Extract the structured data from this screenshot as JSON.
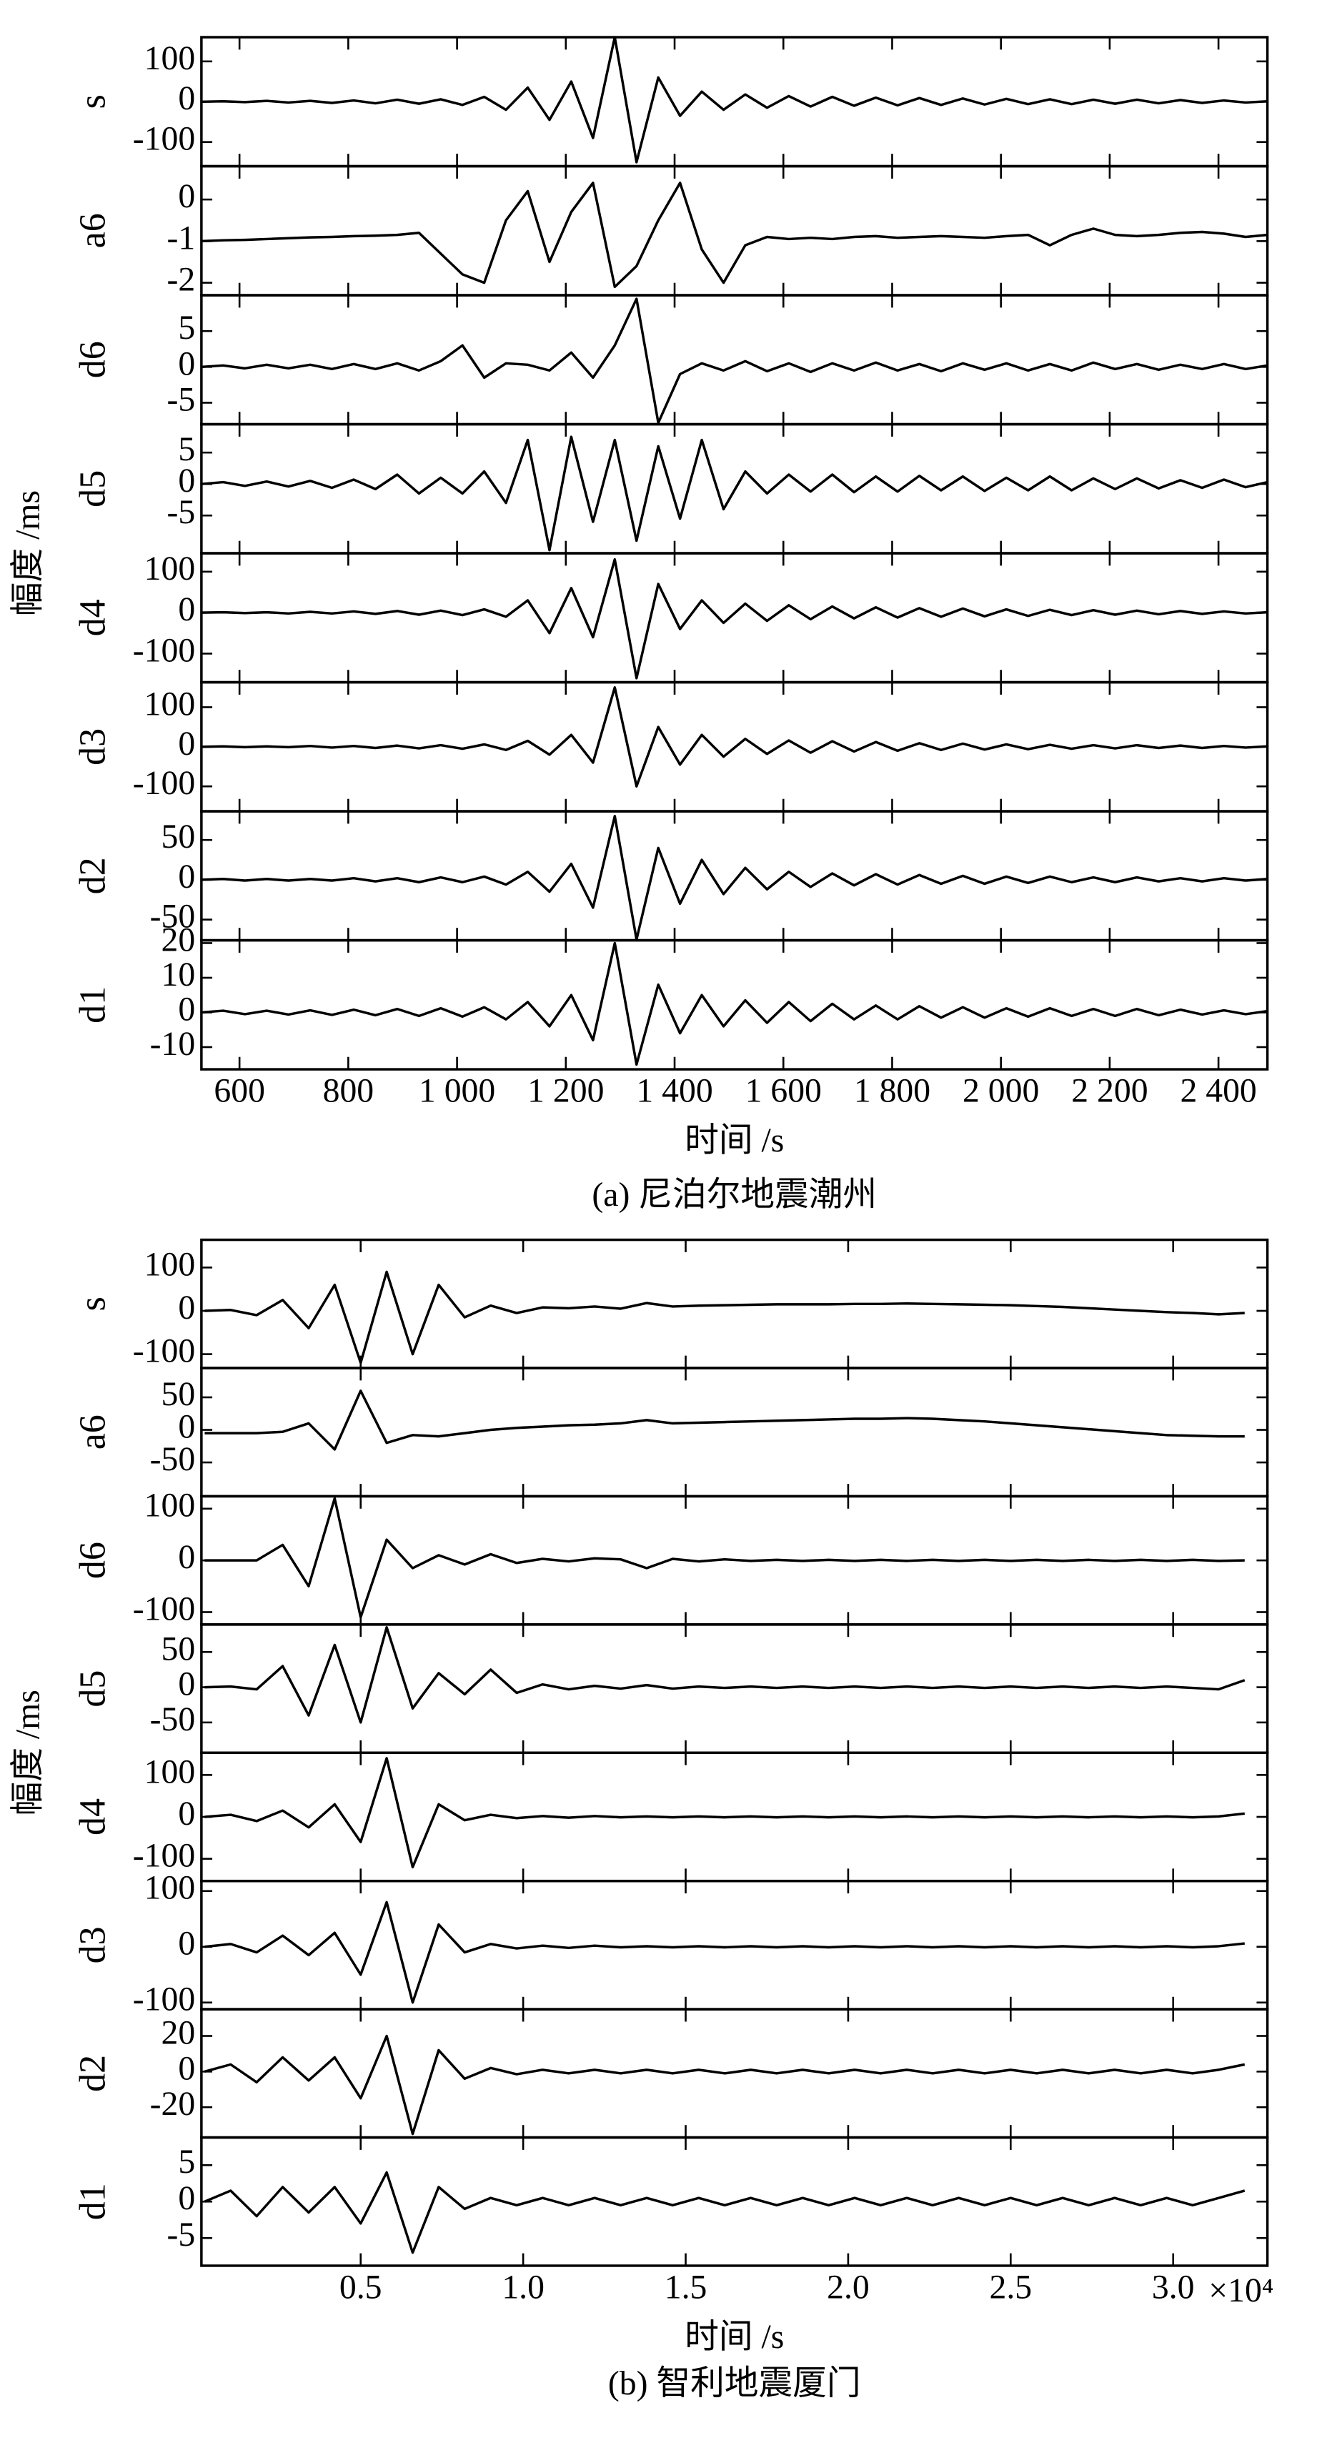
{
  "chart_data": [
    {
      "type": "line",
      "caption": "(a) 尼泊尔地震潮州",
      "xlabel": "时间 /s",
      "ylabel": "幅度 /ms",
      "color": "#000000",
      "xlim": [
        530,
        2490
      ],
      "xticks": [
        600,
        800,
        {
          "value": 1000,
          "label": "1 000"
        },
        {
          "value": 1200,
          "label": "1 200"
        },
        {
          "value": 1400,
          "label": "1 400"
        },
        {
          "value": 1600,
          "label": "1 600"
        },
        {
          "value": 1800,
          "label": "1 800"
        },
        {
          "value": 2000,
          "label": "2 000"
        },
        {
          "value": 2200,
          "label": "2 200"
        },
        {
          "value": 2400,
          "label": "2 400"
        }
      ],
      "x": [
        530,
        570,
        610,
        650,
        690,
        730,
        770,
        810,
        850,
        890,
        930,
        970,
        1010,
        1050,
        1090,
        1130,
        1170,
        1210,
        1250,
        1290,
        1330,
        1370,
        1410,
        1450,
        1490,
        1530,
        1570,
        1610,
        1650,
        1690,
        1730,
        1770,
        1810,
        1850,
        1890,
        1930,
        1970,
        2010,
        2050,
        2090,
        2130,
        2170,
        2210,
        2250,
        2290,
        2330,
        2370,
        2410,
        2450,
        2490
      ],
      "panels": [
        {
          "name": "s",
          "ylim": [
            -160,
            160
          ],
          "yticks": [
            100,
            0,
            -100
          ],
          "values": [
            0,
            1,
            -1,
            2,
            -2,
            2,
            -3,
            3,
            -4,
            5,
            -5,
            6,
            -8,
            12,
            -20,
            35,
            -45,
            50,
            -90,
            160,
            -150,
            60,
            -35,
            25,
            -20,
            18,
            -15,
            14,
            -12,
            12,
            -10,
            10,
            -9,
            9,
            -8,
            8,
            -7,
            7,
            -6,
            6,
            -6,
            5,
            -5,
            5,
            -4,
            4,
            -3,
            3,
            -2,
            1
          ]
        },
        {
          "name": "a6",
          "ylim": [
            -2.3,
            0.8
          ],
          "yticks": [
            0,
            -1,
            -2
          ],
          "values": [
            -1.0,
            -0.98,
            -0.97,
            -0.95,
            -0.93,
            -0.91,
            -0.9,
            -0.88,
            -0.87,
            -0.85,
            -0.8,
            -1.3,
            -1.8,
            -2.0,
            -0.5,
            0.2,
            -1.5,
            -0.3,
            0.4,
            -2.1,
            -1.6,
            -0.5,
            0.4,
            -1.2,
            -2.0,
            -1.1,
            -0.9,
            -0.95,
            -0.92,
            -0.95,
            -0.9,
            -0.88,
            -0.92,
            -0.9,
            -0.88,
            -0.9,
            -0.92,
            -0.88,
            -0.85,
            -1.1,
            -0.85,
            -0.7,
            -0.85,
            -0.88,
            -0.85,
            -0.8,
            -0.78,
            -0.82,
            -0.9,
            -0.85
          ]
        },
        {
          "name": "d6",
          "ylim": [
            -8,
            10
          ],
          "yticks": [
            5,
            0,
            -5
          ],
          "values": [
            0,
            0.2,
            -0.2,
            0.3,
            -0.2,
            0.3,
            -0.3,
            0.4,
            -0.3,
            0.5,
            -0.5,
            0.8,
            3,
            -1.5,
            0.5,
            0.3,
            -0.5,
            2,
            -1.5,
            3,
            9.5,
            -7.8,
            -1,
            0.5,
            -0.5,
            0.8,
            -0.6,
            0.5,
            -0.7,
            0.5,
            -0.5,
            0.6,
            -0.5,
            0.4,
            -0.6,
            0.5,
            -0.4,
            0.5,
            -0.5,
            0.4,
            -0.5,
            0.6,
            -0.3,
            0.4,
            -0.4,
            0.3,
            -0.3,
            0.4,
            -0.3,
            0.2
          ]
        },
        {
          "name": "d5",
          "ylim": [
            -11,
            9.5
          ],
          "yticks": [
            5,
            0,
            -5
          ],
          "values": [
            0,
            0.3,
            -0.3,
            0.4,
            -0.4,
            0.5,
            -0.6,
            0.7,
            -0.8,
            1.5,
            -1.5,
            1,
            -1.5,
            2,
            -3,
            7,
            -10.5,
            7.5,
            -6,
            7,
            -9,
            6,
            -5.5,
            7,
            -4,
            2,
            -1.5,
            1.5,
            -1.2,
            1.5,
            -1.3,
            1.2,
            -1.2,
            1.3,
            -1.0,
            1.2,
            -1.1,
            1.0,
            -1.0,
            1.2,
            -1.0,
            0.9,
            -0.8,
            0.9,
            -0.7,
            0.6,
            -0.6,
            0.7,
            -0.5,
            0.3
          ]
        },
        {
          "name": "d4",
          "ylim": [
            -170,
            145
          ],
          "yticks": [
            100,
            0,
            -100
          ],
          "values": [
            0,
            1,
            -1,
            1,
            -2,
            2,
            -2,
            3,
            -3,
            4,
            -5,
            5,
            -6,
            8,
            -10,
            30,
            -50,
            60,
            -60,
            130,
            -160,
            70,
            -40,
            30,
            -25,
            22,
            -20,
            18,
            -16,
            15,
            -14,
            13,
            -12,
            11,
            -10,
            10,
            -9,
            8,
            -8,
            7,
            -6,
            6,
            -5,
            5,
            -4,
            4,
            -3,
            3,
            -2,
            1
          ]
        },
        {
          "name": "d3",
          "ylim": [
            -163,
            163
          ],
          "yticks": [
            100,
            0,
            -100
          ],
          "values": [
            0,
            1,
            -1,
            1,
            -1,
            2,
            -2,
            2,
            -3,
            3,
            -4,
            4,
            -5,
            6,
            -8,
            15,
            -20,
            30,
            -40,
            150,
            -100,
            50,
            -45,
            30,
            -25,
            20,
            -18,
            16,
            -15,
            14,
            -12,
            12,
            -10,
            9,
            -8,
            8,
            -7,
            6,
            -6,
            5,
            -5,
            4,
            -4,
            4,
            -3,
            3,
            -3,
            2,
            -2,
            1
          ]
        },
        {
          "name": "d2",
          "ylim": [
            -76,
            86
          ],
          "yticks": [
            50,
            0,
            -50
          ],
          "values": [
            0,
            1,
            -1,
            1,
            -1,
            1,
            -1,
            2,
            -2,
            2,
            -3,
            3,
            -3,
            4,
            -6,
            10,
            -15,
            20,
            -35,
            80,
            -75,
            40,
            -30,
            25,
            -18,
            15,
            -12,
            10,
            -9,
            8,
            -7,
            7,
            -6,
            6,
            -5,
            5,
            -5,
            4,
            -4,
            4,
            -3,
            3,
            -3,
            3,
            -2,
            2,
            -2,
            2,
            -1,
            1
          ]
        },
        {
          "name": "d1",
          "ylim": [
            -16.4,
            20.8
          ],
          "yticks": [
            20,
            10,
            0,
            -10
          ],
          "values": [
            0,
            0.5,
            -0.5,
            0.5,
            -0.6,
            0.6,
            -0.7,
            0.8,
            -0.8,
            1,
            -1,
            1.2,
            -1.2,
            1.5,
            -2,
            3,
            -4,
            5,
            -8,
            20,
            -15,
            8,
            -6,
            5,
            -4,
            3.5,
            -3,
            3,
            -2.5,
            2.5,
            -2,
            2,
            -2,
            1.8,
            -1.5,
            1.5,
            -1.5,
            1.2,
            -1.2,
            1.2,
            -1,
            1,
            -1,
            1,
            -0.8,
            0.8,
            -0.6,
            0.6,
            -0.5,
            0.4
          ]
        }
      ]
    },
    {
      "type": "line",
      "caption": "(b) 智利地震厦门",
      "xlabel": "时间 /s",
      "ylabel": "幅度 /ms",
      "x_multiplier": "×10⁴",
      "color": "#000000",
      "xlim": [
        0.01,
        3.29
      ],
      "xticks": [
        0.5,
        {
          "value": 1,
          "label": "1.0"
        },
        1.5,
        {
          "value": 2,
          "label": "2.0"
        },
        2.5,
        {
          "value": 3,
          "label": "3.0"
        }
      ],
      "x": [
        0.02,
        0.1,
        0.18,
        0.26,
        0.34,
        0.42,
        0.5,
        0.58,
        0.66,
        0.74,
        0.82,
        0.9,
        0.98,
        1.06,
        1.14,
        1.22,
        1.3,
        1.38,
        1.46,
        1.54,
        1.62,
        1.7,
        1.78,
        1.86,
        1.94,
        2.02,
        2.1,
        2.18,
        2.26,
        2.34,
        2.42,
        2.5,
        2.58,
        2.66,
        2.74,
        2.82,
        2.9,
        2.98,
        3.06,
        3.14,
        3.22
      ],
      "panels": [
        {
          "name": "s",
          "ylim": [
            -132,
            164
          ],
          "yticks": [
            100,
            0,
            -100
          ],
          "values": [
            0,
            2,
            -10,
            25,
            -40,
            60,
            -120,
            90,
            -100,
            60,
            -15,
            12,
            -5,
            8,
            6,
            10,
            5,
            18,
            10,
            12,
            13,
            14,
            15,
            15,
            15,
            16,
            16,
            17,
            16,
            15,
            14,
            13,
            11,
            9,
            6,
            3,
            0,
            -3,
            -5,
            -8,
            -5
          ]
        },
        {
          "name": "a6",
          "ylim": [
            -102,
            95
          ],
          "yticks": [
            50,
            0,
            -50
          ],
          "values": [
            -5,
            -5,
            -5,
            -3,
            10,
            -30,
            60,
            -20,
            -8,
            -10,
            -5,
            0,
            3,
            5,
            7,
            8,
            10,
            15,
            10,
            11,
            12,
            13,
            14,
            15,
            16,
            17,
            17,
            18,
            17,
            15,
            13,
            10,
            7,
            4,
            1,
            -2,
            -5,
            -8,
            -9,
            -10,
            -10
          ]
        },
        {
          "name": "d6",
          "ylim": [
            -124,
            124
          ],
          "yticks": [
            100,
            0,
            -100
          ],
          "values": [
            0,
            0,
            0,
            30,
            -50,
            120,
            -110,
            40,
            -15,
            10,
            -8,
            12,
            -5,
            3,
            -2,
            4,
            2,
            -15,
            3,
            -2,
            2,
            -1,
            1,
            -1,
            1,
            -1,
            1,
            -1,
            1,
            -1,
            1,
            -1,
            1,
            -1,
            1,
            -1,
            1,
            -1,
            1,
            -1,
            0
          ]
        },
        {
          "name": "d5",
          "ylim": [
            -93,
            89
          ],
          "yticks": [
            50,
            0,
            -50
          ],
          "values": [
            0,
            1,
            -3,
            30,
            -40,
            60,
            -50,
            85,
            -30,
            20,
            -10,
            25,
            -8,
            4,
            -3,
            2,
            -2,
            3,
            -2,
            1,
            -1,
            1,
            -1,
            1,
            -1,
            1,
            -1,
            1,
            -1,
            1,
            -1,
            1,
            -1,
            1,
            -1,
            1,
            -1,
            1,
            -1,
            -3,
            10
          ]
        },
        {
          "name": "d4",
          "ylim": [
            -153,
            153
          ],
          "yticks": [
            100,
            0,
            -100
          ],
          "values": [
            0,
            5,
            -10,
            15,
            -25,
            30,
            -60,
            140,
            -120,
            30,
            -8,
            5,
            -3,
            2,
            -2,
            2,
            -1,
            1,
            -1,
            1,
            -1,
            1,
            -1,
            1,
            -1,
            1,
            -1,
            1,
            -1,
            1,
            -1,
            1,
            -1,
            1,
            -1,
            1,
            -1,
            1,
            -1,
            1,
            8
          ]
        },
        {
          "name": "d3",
          "ylim": [
            -112,
            118
          ],
          "yticks": [
            100,
            0,
            -100
          ],
          "values": [
            0,
            5,
            -10,
            20,
            -15,
            25,
            -50,
            80,
            -100,
            40,
            -10,
            5,
            -3,
            2,
            -2,
            2,
            -1,
            1,
            -1,
            1,
            -1,
            1,
            -1,
            1,
            -1,
            1,
            -1,
            1,
            -1,
            1,
            -1,
            1,
            -1,
            1,
            -1,
            1,
            -1,
            1,
            -1,
            1,
            6
          ]
        },
        {
          "name": "d2",
          "ylim": [
            -37,
            35
          ],
          "yticks": [
            20,
            0,
            -20
          ],
          "values": [
            0,
            4,
            -6,
            8,
            -5,
            8,
            -15,
            20,
            -35,
            12,
            -4,
            2,
            -1.5,
            1,
            -1,
            1,
            -1,
            1,
            -1,
            1,
            -1,
            1,
            -1,
            1,
            -1,
            1,
            -1,
            1,
            -1,
            1,
            -1,
            1,
            -1,
            1,
            -1,
            1,
            -1,
            1,
            -1,
            1,
            4
          ]
        },
        {
          "name": "d1",
          "ylim": [
            -8.8,
            8.8
          ],
          "yticks": [
            5,
            0,
            -5
          ],
          "values": [
            0,
            1.5,
            -2,
            2,
            -1.5,
            2,
            -3,
            4,
            -7,
            2,
            -1,
            0.5,
            -0.5,
            0.5,
            -0.5,
            0.5,
            -0.5,
            0.5,
            -0.5,
            0.5,
            -0.5,
            0.5,
            -0.5,
            0.5,
            -0.5,
            0.5,
            -0.5,
            0.5,
            -0.5,
            0.5,
            -0.5,
            0.5,
            -0.5,
            0.5,
            -0.5,
            0.5,
            -0.5,
            0.5,
            -0.5,
            0.5,
            1.5
          ]
        }
      ]
    }
  ]
}
